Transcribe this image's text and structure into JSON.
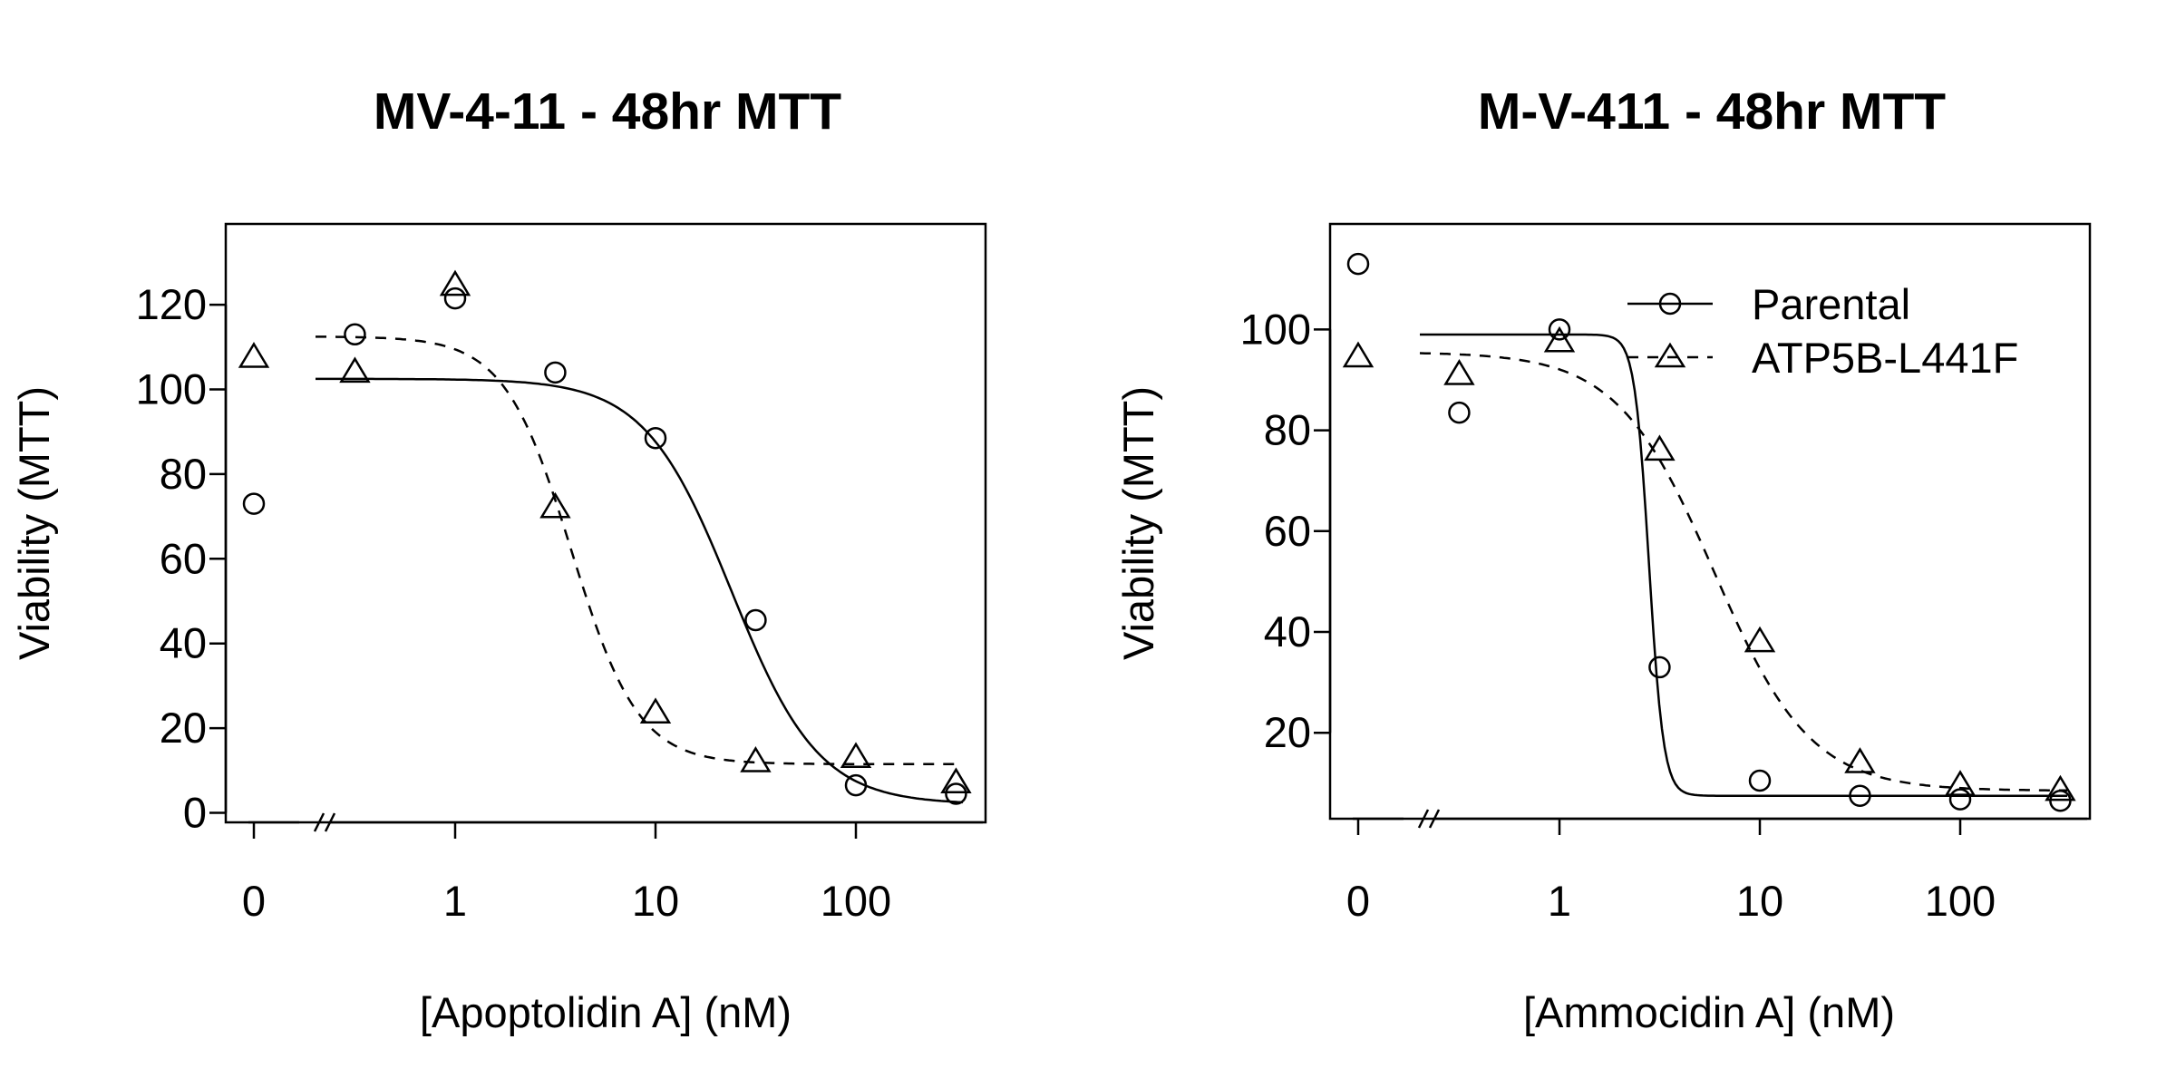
{
  "chart_data": [
    {
      "type": "scatter",
      "title": "MV-4-11 - 48hr MTT",
      "xlabel": "[Apoptolidin A] (nM)",
      "ylabel": "Viability (MTT)",
      "x_scale": "log10 with broken axis at 0",
      "x_ticks": [
        "0",
        "1",
        "10",
        "100"
      ],
      "y_ticks": [
        "0",
        "20",
        "40",
        "60",
        "80",
        "100",
        "120"
      ],
      "ylim": [
        0,
        130
      ],
      "legend": false,
      "series": [
        {
          "marker": "circle",
          "line": "solid",
          "points": [
            {
              "x": 0,
              "y": 73
            },
            {
              "x": 0.316,
              "y": 113
            },
            {
              "x": 1,
              "y": 121.5
            },
            {
              "x": 3.16,
              "y": 104
            },
            {
              "x": 10,
              "y": 88.5
            },
            {
              "x": 31.6,
              "y": 45.5
            },
            {
              "x": 100,
              "y": 6.5
            },
            {
              "x": 316,
              "y": 4.5
            }
          ],
          "fit": {
            "top": 102.5,
            "bottom": 2,
            "ec50": 24,
            "hill": 2
          }
        },
        {
          "marker": "triangle",
          "line": "dashed",
          "points": [
            {
              "x": 0,
              "y": 107.5
            },
            {
              "x": 0.316,
              "y": 104
            },
            {
              "x": 1,
              "y": 124.5
            },
            {
              "x": 3.16,
              "y": 72
            },
            {
              "x": 10,
              "y": 23.5
            },
            {
              "x": 31.6,
              "y": 12
            },
            {
              "x": 100,
              "y": 13
            },
            {
              "x": 316,
              "y": 7
            }
          ],
          "fit": {
            "top": 112.5,
            "bottom": 11.5,
            "ec50": 3.8,
            "hill": 2.6
          }
        }
      ]
    },
    {
      "type": "scatter",
      "title": "M-V-411 - 48hr MTT",
      "xlabel": "[Ammocidin A] (nM)",
      "ylabel": "Viability (MTT)",
      "x_scale": "log10 with broken axis at 0",
      "x_ticks": [
        "0",
        "1",
        "10",
        "100"
      ],
      "y_ticks": [
        "20",
        "40",
        "60",
        "80",
        "100"
      ],
      "ylim": [
        3,
        113
      ],
      "legend": true,
      "legend_position": "top-right",
      "series": [
        {
          "name": "Parental",
          "marker": "circle",
          "line": "solid",
          "points": [
            {
              "x": 0,
              "y": 113
            },
            {
              "x": 0.316,
              "y": 83.5
            },
            {
              "x": 1,
              "y": 100
            },
            {
              "x": 3.16,
              "y": 33
            },
            {
              "x": 10,
              "y": 10.5
            },
            {
              "x": 31.6,
              "y": 7.5
            },
            {
              "x": 100,
              "y": 6.8
            },
            {
              "x": 316,
              "y": 6.5
            }
          ],
          "fit": {
            "top": 99,
            "bottom": 7.5,
            "ec50": 2.8,
            "hill": 12
          }
        },
        {
          "name": "ATP5B-L441F",
          "marker": "triangle",
          "line": "dashed",
          "points": [
            {
              "x": 0,
              "y": 94.5
            },
            {
              "x": 0.316,
              "y": 91
            },
            {
              "x": 1,
              "y": 97.5
            },
            {
              "x": 3.16,
              "y": 76
            },
            {
              "x": 10,
              "y": 38
            },
            {
              "x": 31.6,
              "y": 14
            },
            {
              "x": 100,
              "y": 9.5
            },
            {
              "x": 316,
              "y": 8.5
            }
          ],
          "fit": {
            "top": 95.5,
            "bottom": 8.5,
            "ec50": 5.9,
            "hill": 1.8
          }
        }
      ]
    }
  ]
}
